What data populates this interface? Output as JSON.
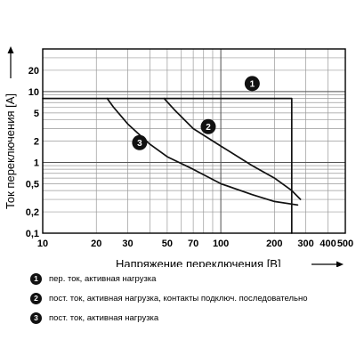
{
  "chart_data": {
    "type": "line",
    "xscale": "log",
    "yscale": "log",
    "xlim": [
      10,
      500
    ],
    "ylim": [
      0.1,
      40
    ],
    "xlabel": "Напряжение переключения [В]",
    "ylabel": "Ток переключения [А]",
    "x_ticks": [
      {
        "value": 10,
        "label": "10"
      },
      {
        "value": 20,
        "label": "20"
      },
      {
        "value": 30,
        "label": "30"
      },
      {
        "value": 50,
        "label": "50"
      },
      {
        "value": 70,
        "label": "70"
      },
      {
        "value": 100,
        "label": "100"
      },
      {
        "value": 200,
        "label": "200"
      },
      {
        "value": 300,
        "label": "300"
      },
      {
        "value": 400,
        "label": "400"
      },
      {
        "value": 500,
        "label": "500"
      }
    ],
    "y_ticks": [
      {
        "value": 0.1,
        "label": "0,1"
      },
      {
        "value": 0.2,
        "label": "0,2"
      },
      {
        "value": 0.5,
        "label": "0,5"
      },
      {
        "value": 1,
        "label": "1"
      },
      {
        "value": 2,
        "label": "2"
      },
      {
        "value": 5,
        "label": "5"
      },
      {
        "value": 10,
        "label": "10"
      },
      {
        "value": 20,
        "label": "20"
      }
    ],
    "grid": true,
    "series": [
      {
        "badge": "1",
        "badge_at": [
          150,
          13
        ],
        "points": [
          [
            10,
            8
          ],
          [
            250,
            8
          ],
          [
            250,
            0.1
          ]
        ]
      },
      {
        "badge": "2",
        "badge_at": [
          85,
          3.2
        ],
        "points": [
          [
            48,
            8
          ],
          [
            55,
            5.5
          ],
          [
            70,
            3.0
          ],
          [
            100,
            1.7
          ],
          [
            150,
            0.9
          ],
          [
            200,
            0.6
          ],
          [
            250,
            0.4
          ],
          [
            280,
            0.3
          ]
        ]
      },
      {
        "badge": "3",
        "badge_at": [
          35,
          1.9
        ],
        "points": [
          [
            23,
            8
          ],
          [
            25,
            6
          ],
          [
            30,
            3.5
          ],
          [
            40,
            1.8
          ],
          [
            50,
            1.2
          ],
          [
            70,
            0.8
          ],
          [
            100,
            0.5
          ],
          [
            150,
            0.35
          ],
          [
            200,
            0.28
          ],
          [
            270,
            0.25
          ]
        ]
      }
    ]
  },
  "legend": [
    {
      "num": "1",
      "text": "пер. ток, активная нагрузка"
    },
    {
      "num": "2",
      "text": "пост. ток, активная нагрузка, контакты подключ. последовательно"
    },
    {
      "num": "3",
      "text": "пост. ток, активная нагрузка"
    }
  ],
  "colors": {
    "line": "#111111",
    "grid": "#999999",
    "frame": "#000000",
    "badge": "#111111"
  }
}
